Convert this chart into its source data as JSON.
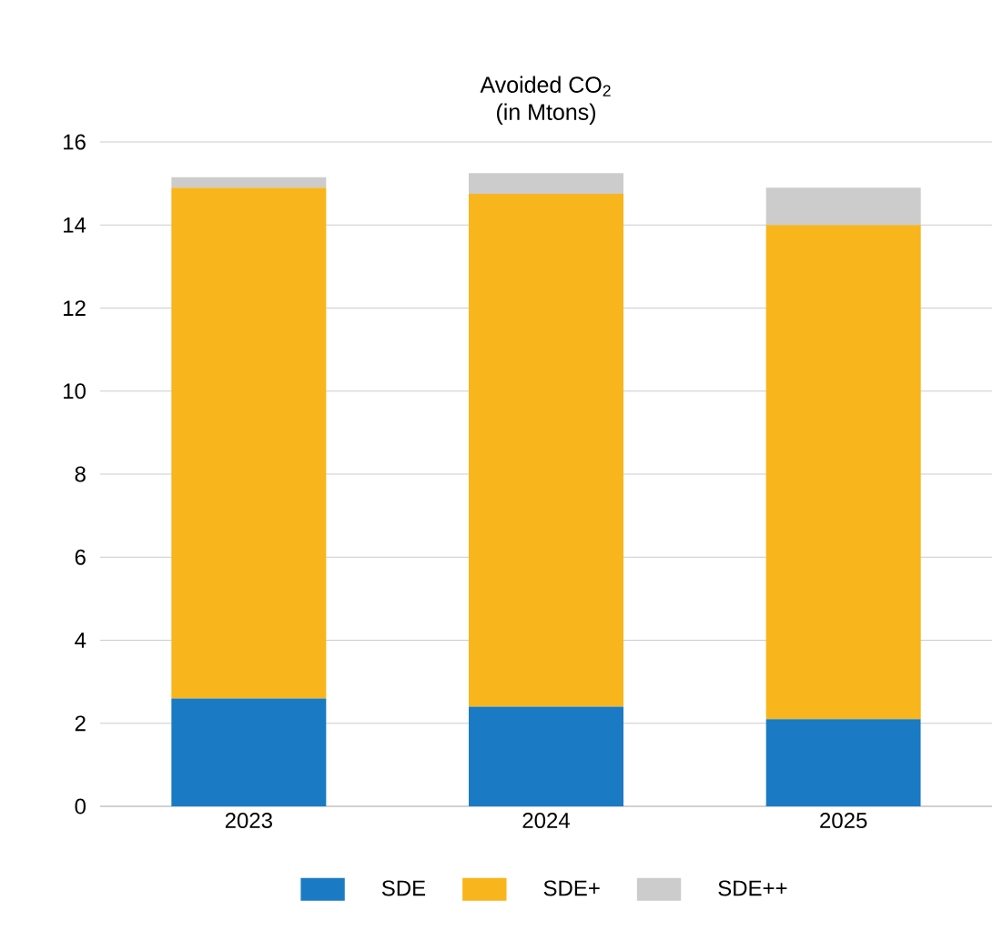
{
  "chart_data": {
    "type": "bar",
    "title": "Avoided CO$_{2}$",
    "subtitle": "(in Mtons)",
    "categories": [
      "2023",
      "2024",
      "2025"
    ],
    "series": [
      {
        "name": "SDE",
        "color": "#1a7bc4",
        "values": [
          2.6,
          2.4,
          2.1
        ]
      },
      {
        "name": "SDE+",
        "color": "#f8b51c",
        "values": [
          12.3,
          12.35,
          11.9
        ]
      },
      {
        "name": "SDE++",
        "color": "#cccccc",
        "values": [
          0.25,
          0.5,
          0.9
        ]
      }
    ],
    "stacked": true,
    "ylim": [
      0,
      16
    ],
    "yticks": [
      0,
      2,
      4,
      6,
      8,
      10,
      12,
      14,
      16
    ],
    "grid": "y",
    "legend": "bottom"
  }
}
